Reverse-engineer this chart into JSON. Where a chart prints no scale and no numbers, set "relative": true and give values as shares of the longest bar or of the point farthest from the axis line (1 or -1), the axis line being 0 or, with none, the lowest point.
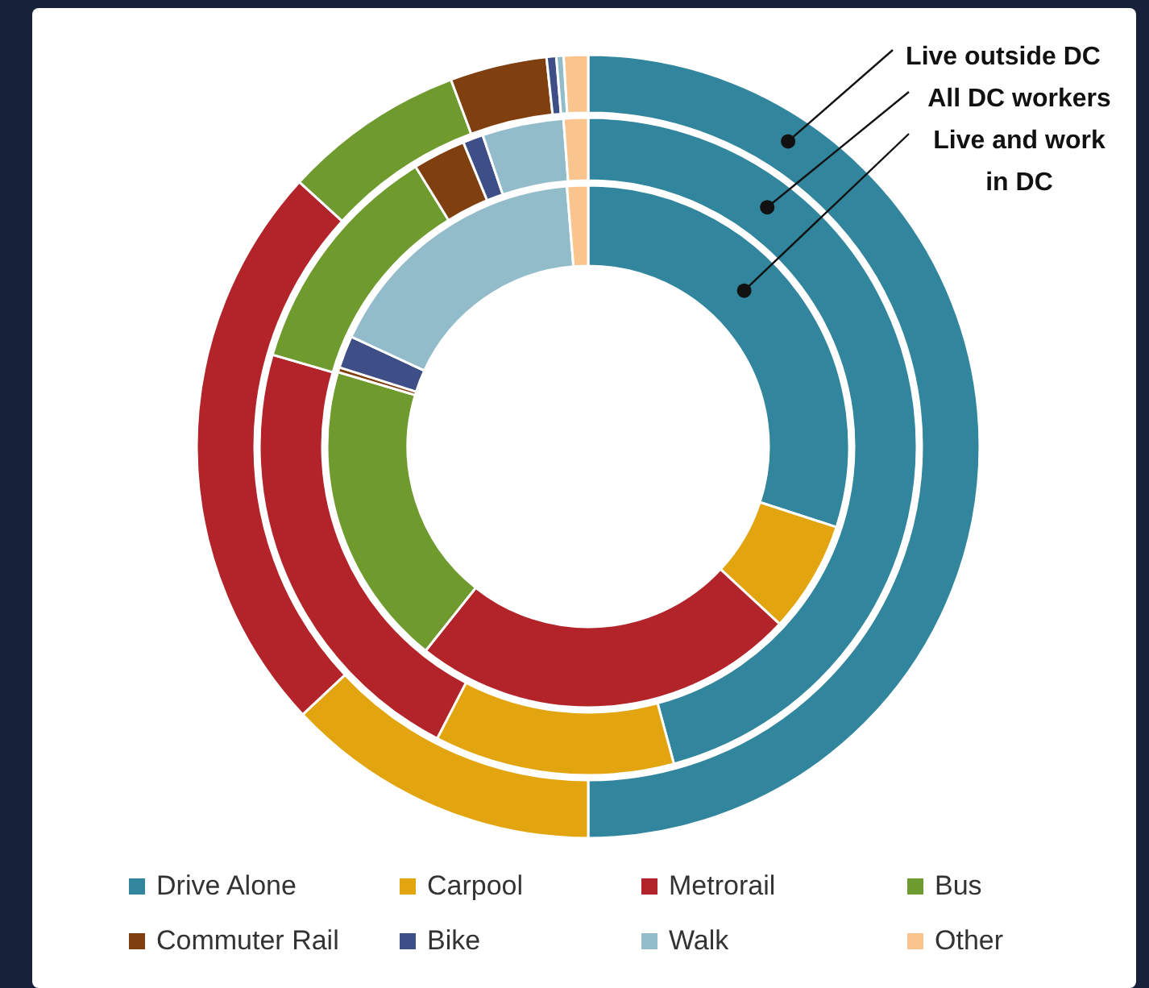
{
  "chart_data": {
    "type": "donut",
    "relative": true,
    "categories": [
      "Drive Alone",
      "Carpool",
      "Metrorail",
      "Bus",
      "Commuter Rail",
      "Bike",
      "Walk",
      "Other"
    ],
    "colors": [
      "#31859c",
      "#e3a50f",
      "#b3242a",
      "#6e9a2e",
      "#7f3f0f",
      "#3d4f86",
      "#93bccb",
      "#fac48e"
    ],
    "series": [
      {
        "name": "Live outside DC",
        "values": [
          50,
          13,
          23.8,
          7.5,
          4,
          0.4,
          0.3,
          1
        ]
      },
      {
        "name": "All DC workers",
        "values": [
          45.8,
          11.8,
          21.9,
          11.7,
          2.6,
          1,
          4,
          1.2
        ]
      },
      {
        "name": "Live and work in DC",
        "values": [
          30,
          6.9,
          23.8,
          18.9,
          0.3,
          2,
          16.8,
          1.3
        ]
      }
    ],
    "legend": "bottom"
  }
}
